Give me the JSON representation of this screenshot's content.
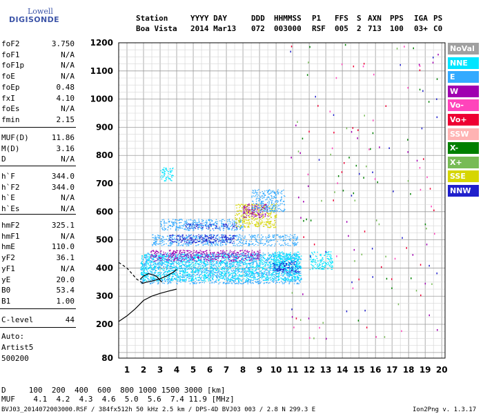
{
  "logo": {
    "line1": "Lowell",
    "line2": "DIGISONDE"
  },
  "header": {
    "columns": [
      {
        "title": "Station",
        "value": "Boa Vista"
      },
      {
        "title": "YYYY DAY",
        "value": "2014 Mar13"
      },
      {
        "title": "DDD",
        "value": "072"
      },
      {
        "title": "HHMMSS",
        "value": "003000"
      },
      {
        "title": "P1",
        "value": "RSF"
      },
      {
        "title": "FFS",
        "value": "005"
      },
      {
        "title": "S",
        "value": "2"
      },
      {
        "title": "AXN",
        "value": "713"
      },
      {
        "title": "PPS",
        "value": "100"
      },
      {
        "title": "IGA",
        "value": "03+"
      },
      {
        "title": "PS",
        "value": "C0"
      }
    ]
  },
  "params": {
    "group1": [
      {
        "name": "foF2",
        "value": "3.750"
      },
      {
        "name": "foF1",
        "value": "N/A"
      },
      {
        "name": "foF1p",
        "value": "N/A"
      },
      {
        "name": "foE",
        "value": "N/A"
      },
      {
        "name": "foEp",
        "value": "0.48"
      },
      {
        "name": "fxI",
        "value": "4.10"
      },
      {
        "name": "foEs",
        "value": "N/A"
      },
      {
        "name": "fmin",
        "value": "2.15"
      }
    ],
    "group2": [
      {
        "name": "MUF(D)",
        "value": "11.86"
      },
      {
        "name": "M(D)",
        "value": "3.16"
      },
      {
        "name": "D",
        "value": "N/A"
      }
    ],
    "group3": [
      {
        "name": "h`F",
        "value": "344.0"
      },
      {
        "name": "h`F2",
        "value": "344.0"
      },
      {
        "name": "h`E",
        "value": "N/A"
      },
      {
        "name": "h`Es",
        "value": "N/A"
      }
    ],
    "group4": [
      {
        "name": "hmF2",
        "value": "325.1"
      },
      {
        "name": "hmF1",
        "value": "N/A"
      },
      {
        "name": "hmE",
        "value": "110.0"
      },
      {
        "name": "yF2",
        "value": "36.1"
      },
      {
        "name": "yF1",
        "value": "N/A"
      },
      {
        "name": "yE",
        "value": "20.0"
      },
      {
        "name": "B0",
        "value": "53.4"
      },
      {
        "name": "B1",
        "value": "1.00"
      }
    ],
    "group5": [
      {
        "name": "C-level",
        "value": "44"
      }
    ]
  },
  "autoscaling": {
    "line1": "Auto:",
    "line2": "Artist5",
    "line3": "500200"
  },
  "legend": [
    {
      "label": "NoVal",
      "color": "#a0a0a0"
    },
    {
      "label": "NNE",
      "color": "#00e5ff"
    },
    {
      "label": "E",
      "color": "#33aaff"
    },
    {
      "label": "W",
      "color": "#a000b0"
    },
    {
      "label": "Vo-",
      "color": "#ff44bb"
    },
    {
      "label": "Vo+",
      "color": "#ee0033"
    },
    {
      "label": "SSW",
      "color": "#ffb3b3"
    },
    {
      "label": "X-",
      "color": "#008000"
    },
    {
      "label": "X+",
      "color": "#77bb55"
    },
    {
      "label": "SSE",
      "color": "#d6d600"
    },
    {
      "label": "NNW",
      "color": "#2020cc"
    }
  ],
  "footer": {
    "d_row": "D     100  200  400  600  800 1000 1500 3000 [km]",
    "muf_row": "MUF    4.1  4.2  4.3  4.6  5.0  5.6  7.4 11.9 [MHz]",
    "fileinfo": "BVJ03_2014072003000.RSF / 384fx512h 50 kHz 2.5 km / DPS-4D BVJ03 003 / 2.8 N 299.3 E",
    "version": "Ion2Png v. 1.3.17"
  },
  "chart_data": {
    "type": "scatter",
    "title": "",
    "xlabel": "",
    "ylabel": "",
    "xlim": [
      0.5,
      20.2
    ],
    "ylim": [
      80,
      1200
    ],
    "x_ticks": [
      1,
      2,
      3,
      4,
      5,
      6,
      7,
      8,
      9,
      10,
      11,
      12,
      13,
      14,
      15,
      16,
      17,
      18,
      19,
      20
    ],
    "y_ticks": [
      80,
      200,
      300,
      400,
      500,
      600,
      700,
      800,
      900,
      1000,
      1100,
      1200
    ],
    "grid": true,
    "legend_position": "right",
    "echo_bands": [
      {
        "group": "E",
        "f": [
          1.8,
          11.5
        ],
        "h": [
          345,
          455
        ]
      },
      {
        "group": "NNE",
        "f": [
          1.8,
          11.5
        ],
        "h": [
          355,
          450
        ]
      },
      {
        "group": "NNE",
        "f": [
          9.8,
          11.4
        ],
        "h": [
          390,
          460
        ]
      },
      {
        "group": "NNW",
        "f": [
          9.8,
          11.4
        ],
        "h": [
          385,
          425
        ]
      },
      {
        "group": "NNE",
        "f": [
          12.0,
          13.4
        ],
        "h": [
          395,
          460
        ]
      },
      {
        "group": "W",
        "f": [
          2.4,
          9.0
        ],
        "h": [
          425,
          465
        ]
      },
      {
        "group": "E",
        "f": [
          2.5,
          11.3
        ],
        "h": [
          480,
          520
        ]
      },
      {
        "group": "NNW",
        "f": [
          3.5,
          7.5
        ],
        "h": [
          490,
          520
        ]
      },
      {
        "group": "NNW",
        "f": [
          4.5,
          7.6
        ],
        "h": [
          540,
          560
        ]
      },
      {
        "group": "E",
        "f": [
          3.0,
          8.0
        ],
        "h": [
          535,
          575
        ]
      },
      {
        "group": "SSE",
        "f": [
          7.5,
          10.0
        ],
        "h": [
          545,
          630
        ]
      },
      {
        "group": "W",
        "f": [
          8.0,
          9.5
        ],
        "h": [
          580,
          630
        ]
      },
      {
        "group": "NNE",
        "f": [
          3.0,
          3.8
        ],
        "h": [
          710,
          760
        ]
      },
      {
        "group": "E",
        "f": [
          8.5,
          10.5
        ],
        "h": [
          600,
          680
        ]
      }
    ],
    "trace_lines": [
      {
        "name": "trace",
        "f": [
          1.9,
          2.2,
          2.6,
          3.0,
          3.4,
          3.8,
          4.0
        ],
        "h": [
          345,
          350,
          355,
          362,
          372,
          385,
          395
        ]
      },
      {
        "name": "trace",
        "f": [
          1.8,
          2.0,
          2.3,
          2.6,
          2.8,
          3.1
        ],
        "h": [
          360,
          372,
          380,
          375,
          370,
          350
        ]
      },
      {
        "name": "profile",
        "f": [
          0.5,
          1.0,
          1.5,
          2.0,
          2.5,
          3.0,
          3.5,
          4.0
        ],
        "h": [
          210,
          230,
          255,
          285,
          300,
          310,
          318,
          325
        ]
      },
      {
        "name": "dashed",
        "f": [
          0.5,
          1.0,
          1.3,
          1.6,
          2.0
        ],
        "h": [
          420,
          400,
          380,
          360,
          345
        ]
      }
    ]
  }
}
